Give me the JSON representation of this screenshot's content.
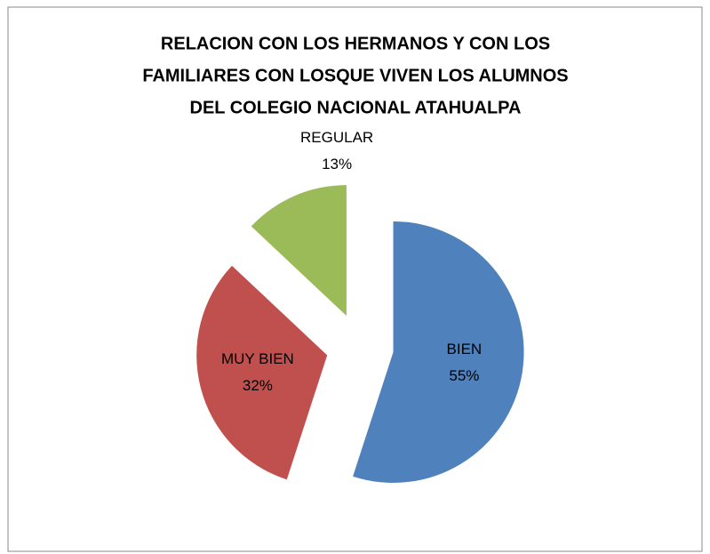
{
  "chart_data": {
    "type": "pie",
    "title": [
      "RELACION CON LOS HERMANOS Y CON LOS",
      "FAMILIARES CON LOSQUE VIVEN LOS ALUMNOS",
      "DEL COLEGIO NACIONAL ATAHUALPA"
    ],
    "categories": [
      "BIEN",
      "MUY BIEN",
      "REGULAR"
    ],
    "values": [
      55,
      32,
      13
    ],
    "value_labels": [
      "55%",
      "32%",
      "13%"
    ],
    "colors": [
      "#4f81bd",
      "#c0504d",
      "#9bbb59"
    ],
    "exploded": true
  }
}
